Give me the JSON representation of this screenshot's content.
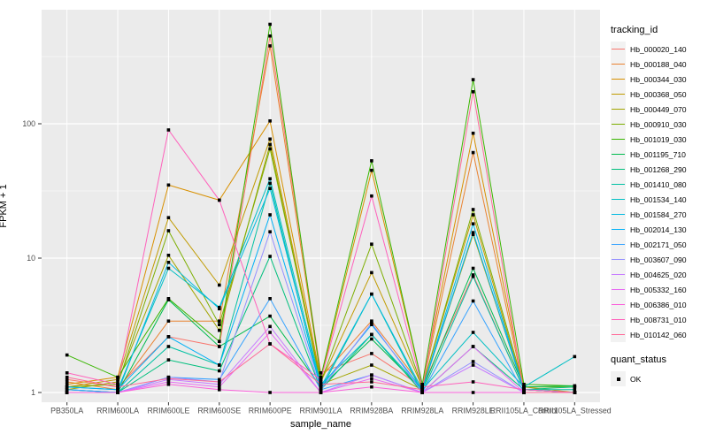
{
  "figure": {
    "bg": "#FFFFFF",
    "panel_bg": "#EBEBEB",
    "grid_color": "#FFFFFF",
    "tick_color": "#333333",
    "tick_label_color": "#4D4D4D",
    "point_color": "#000000"
  },
  "chart_data": {
    "type": "line",
    "title": "",
    "xlabel": "sample_name",
    "ylabel": "FPKM + 1",
    "y_scale": "log10",
    "y_ticks": [
      1,
      10,
      100
    ],
    "y_minor_ticks": [
      3.1623,
      31.623,
      316.23
    ],
    "ylim": [
      1,
      700
    ],
    "grid": "on",
    "legend_position": "right",
    "categories": [
      "PB350LA",
      "RRIM600LA",
      "RRIM600LE",
      "RRIM600SE",
      "RRIM600PE",
      "RRIM901LA",
      "RRIM928BA",
      "RRIM928LA",
      "RRIM928LE",
      "RRII105LA_Control",
      "RRII105LA_Stressed"
    ],
    "series": [
      {
        "name": "Hb_000020_140",
        "color": "#F8766D",
        "values": [
          1.25,
          1.1,
          2.6,
          2.2,
          450,
          1.4,
          1.95,
          1.1,
          7.5,
          1.05,
          1.0
        ]
      },
      {
        "name": "Hb_000188_040",
        "color": "#EA8331",
        "values": [
          1.2,
          1.05,
          3.4,
          3.4,
          380,
          1.3,
          3.4,
          1.1,
          61,
          1.05,
          1.0
        ]
      },
      {
        "name": "Hb_000344_030",
        "color": "#D89000",
        "values": [
          1.15,
          1.3,
          35,
          27,
          105,
          1.25,
          45,
          1.15,
          85,
          1.1,
          1.0
        ]
      },
      {
        "name": "Hb_000368_050",
        "color": "#C09B00",
        "values": [
          1.1,
          1.25,
          20,
          6.3,
          77,
          1.2,
          7.8,
          1.1,
          21,
          1.05,
          1.0
        ]
      },
      {
        "name": "Hb_000449_070",
        "color": "#A3A500",
        "values": [
          1.05,
          1.2,
          10.5,
          2.9,
          70,
          1.15,
          1.6,
          1.05,
          15,
          1.05,
          1.0
        ]
      },
      {
        "name": "Hb_000910_030",
        "color": "#7CAE00",
        "values": [
          1.1,
          1.15,
          16,
          3.2,
          65,
          1.2,
          12.7,
          1.1,
          23,
          1.1,
          1.1
        ]
      },
      {
        "name": "Hb_001019_030",
        "color": "#39B600",
        "values": [
          1.9,
          1.3,
          5.0,
          2.4,
          550,
          1.3,
          53,
          1.15,
          213,
          1.15,
          1.12
        ]
      },
      {
        "name": "Hb_001195_710",
        "color": "#00BB4E",
        "values": [
          1.05,
          1.0,
          4.9,
          2.2,
          3.7,
          1.1,
          2.5,
          1.05,
          8.4,
          1.1,
          1.12
        ]
      },
      {
        "name": "Hb_001268_290",
        "color": "#00BF7D",
        "values": [
          1.0,
          1.0,
          1.75,
          1.45,
          10.3,
          1.05,
          2.7,
          1.0,
          2.2,
          1.05,
          1.1
        ]
      },
      {
        "name": "Hb_001410_080",
        "color": "#00C1A3",
        "values": [
          1.0,
          1.0,
          2.2,
          1.6,
          36,
          1.05,
          5.4,
          1.0,
          7.3,
          1.05,
          1.05
        ]
      },
      {
        "name": "Hb_001534_140",
        "color": "#00BFC4",
        "values": [
          1.1,
          1.05,
          8.4,
          4.3,
          39,
          1.15,
          2.7,
          1.05,
          2.8,
          1.1,
          1.85
        ]
      },
      {
        "name": "Hb_001584_270",
        "color": "#00BAE0",
        "values": [
          1.05,
          1.0,
          9.3,
          4.2,
          33,
          1.1,
          5.4,
          1.05,
          18,
          1.05,
          1.0
        ]
      },
      {
        "name": "Hb_002014_130",
        "color": "#00B0F6",
        "values": [
          1.1,
          1.05,
          2.6,
          1.6,
          21,
          1.1,
          3.2,
          1.05,
          15.5,
          1.05,
          1.0
        ]
      },
      {
        "name": "Hb_002171_050",
        "color": "#35A2FF",
        "values": [
          1.05,
          1.0,
          1.3,
          1.25,
          5.0,
          1.05,
          1.35,
          1.0,
          4.8,
          1.0,
          1.0
        ]
      },
      {
        "name": "Hb_003607_090",
        "color": "#9590FF",
        "values": [
          1.0,
          1.0,
          1.3,
          1.2,
          15.7,
          1.05,
          3.3,
          1.0,
          1.7,
          1.0,
          1.0
        ]
      },
      {
        "name": "Hb_004625_020",
        "color": "#C77CFF",
        "values": [
          1.0,
          1.0,
          1.25,
          1.15,
          3.1,
          1.0,
          1.35,
          1.0,
          1.6,
          1.0,
          1.0
        ]
      },
      {
        "name": "Hb_005332_160",
        "color": "#E76BF3",
        "values": [
          1.0,
          1.0,
          1.2,
          1.1,
          2.8,
          1.0,
          1.27,
          1.0,
          2.2,
          1.0,
          1.0
        ]
      },
      {
        "name": "Hb_006386_010",
        "color": "#FA62DB",
        "values": [
          1.0,
          1.0,
          1.15,
          1.05,
          1.0,
          1.0,
          1.1,
          1.0,
          1.0,
          1.0,
          1.0
        ]
      },
      {
        "name": "Hb_008731_010",
        "color": "#FF62BC",
        "values": [
          1.4,
          1.15,
          90,
          27,
          2.3,
          1.25,
          29,
          1.1,
          1.2,
          1.05,
          1.0
        ]
      },
      {
        "name": "Hb_010142_060",
        "color": "#FF6A98",
        "values": [
          1.3,
          1.1,
          1.27,
          1.2,
          2.3,
          1.15,
          1.2,
          1.05,
          173,
          1.0,
          1.0
        ]
      }
    ],
    "legend": {
      "color_title": "tracking_id",
      "shape_title": "quant_status",
      "shape_items": [
        {
          "label": "OK",
          "marker": "black-square"
        }
      ]
    }
  }
}
